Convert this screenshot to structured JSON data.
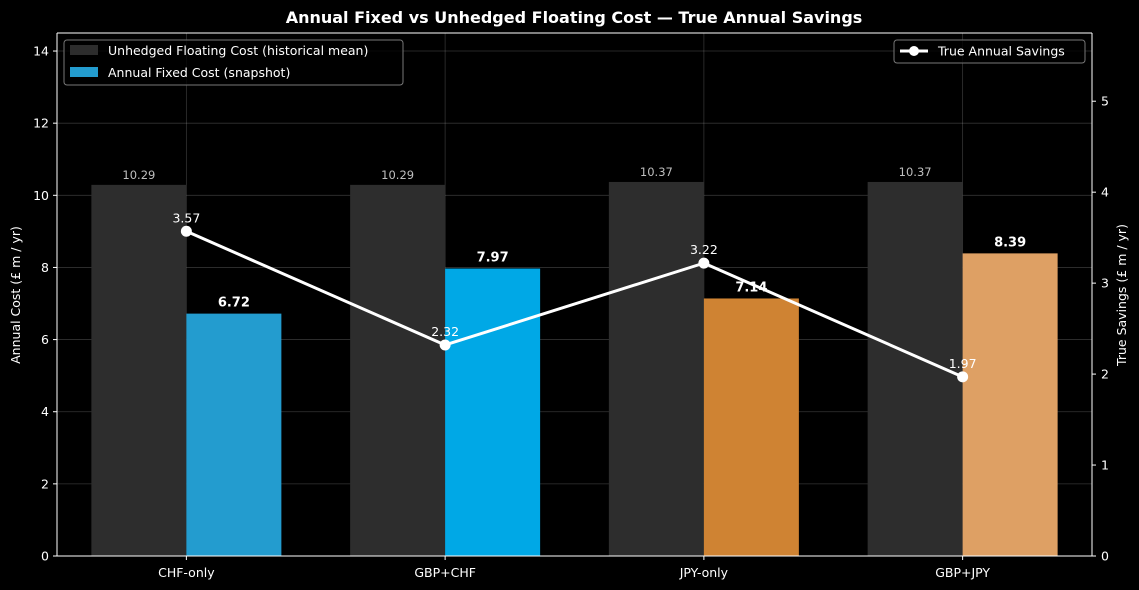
{
  "chart_data": {
    "type": "bar",
    "title": "Annual Fixed vs Unhedged Floating Cost — True Annual Savings",
    "categories": [
      "CHF-only",
      "GBP+CHF",
      "JPY-only",
      "GBP+JPY"
    ],
    "ylabel": "Annual Cost (£ m / yr)",
    "y2label": "True Savings (£ m / yr)",
    "ylim": [
      0,
      14.5
    ],
    "y2lim": [
      0,
      5.75
    ],
    "yticks": [
      "0",
      "2",
      "4",
      "6",
      "8",
      "10",
      "12",
      "14"
    ],
    "y2ticks": [
      "0",
      "1",
      "2",
      "3",
      "4",
      "5"
    ],
    "grid": true,
    "series": [
      {
        "name": "Unhedged Floating Cost (historical mean)",
        "values": [
          10.29,
          10.29,
          10.37,
          10.37
        ],
        "labels": [
          "10.29",
          "10.29",
          "10.37",
          "10.37"
        ],
        "color": "#2d2d2d"
      },
      {
        "name": "Annual Fixed Cost (snapshot)",
        "values": [
          6.72,
          7.97,
          7.14,
          8.39
        ],
        "labels": [
          "6.72",
          "7.97",
          "7.14",
          "8.39"
        ],
        "colors": [
          "#239ccf",
          "#00a8e6",
          "#cf8333",
          "#dea064"
        ],
        "legend_color": "#239ccf"
      },
      {
        "name": "True Annual Savings",
        "type": "line",
        "axis": "right",
        "values": [
          3.57,
          2.32,
          3.22,
          1.97
        ],
        "labels": [
          "3.57",
          "2.32",
          "3.22",
          "1.97"
        ],
        "color": "#ffffff"
      }
    ],
    "legend_left_position": "top-left",
    "legend_right_position": "top-right"
  }
}
